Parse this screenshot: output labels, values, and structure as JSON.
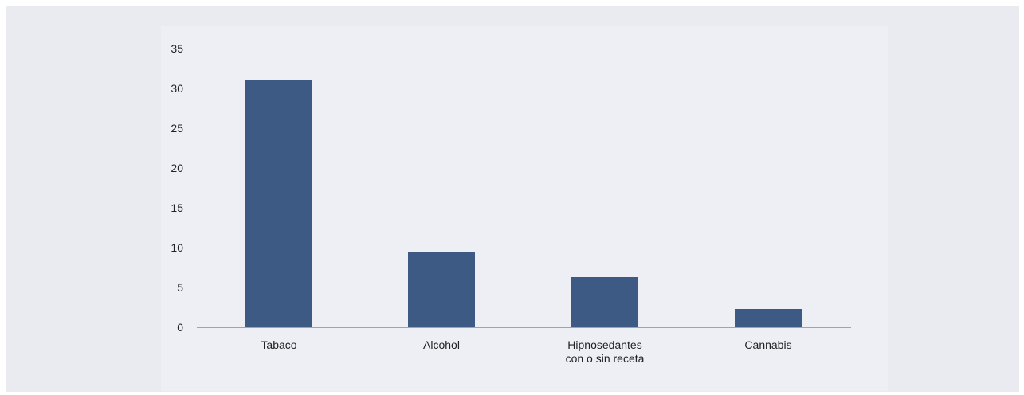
{
  "chart_data": {
    "type": "bar",
    "categories": [
      [
        "Tabaco"
      ],
      [
        "Alcohol"
      ],
      [
        "Hipnosedantes",
        "con o sin receta"
      ],
      [
        "Cannabis"
      ]
    ],
    "values": [
      31,
      9.5,
      6.3,
      2.3
    ],
    "yticks": [
      "0",
      "5",
      "10",
      "15",
      "20",
      "25",
      "30",
      "35"
    ],
    "ylim": [
      0,
      35
    ],
    "grid": false,
    "bar_color": "#3c5a84",
    "axis_color": "#8a8a8a",
    "title": "",
    "xlabel": "",
    "ylabel": ""
  }
}
